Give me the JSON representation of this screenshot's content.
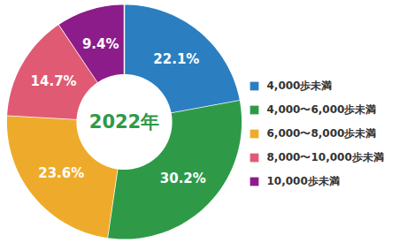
{
  "chart_data": {
    "type": "pie",
    "title": "2022年",
    "categories": [
      "4,000歩未満",
      "4,000〜6,000歩未満",
      "6,000〜8,000歩未満",
      "8,000〜10,000歩未満",
      "10,000歩未満"
    ],
    "values": [
      22.1,
      30.2,
      23.6,
      14.7,
      9.4
    ],
    "value_labels": [
      "22.1%",
      "30.2%",
      "23.6%",
      "14.7%",
      "9.4%"
    ],
    "colors": [
      "#2b7fc0",
      "#2e9a48",
      "#eeab2b",
      "#e05a73",
      "#8c1c8a"
    ],
    "data_labels": true,
    "legend": "right"
  }
}
